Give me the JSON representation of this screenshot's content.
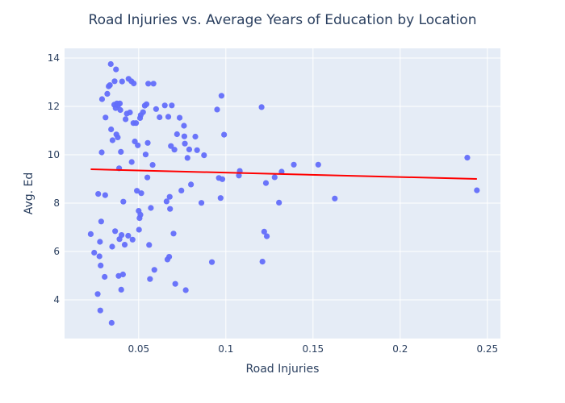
{
  "chart_data": {
    "type": "scatter",
    "title": "Road Injuries vs. Average Years of Education by Location",
    "xlabel": "Road Injuries",
    "ylabel": "Avg. Ed",
    "xlim": [
      0.0075,
      0.2575
    ],
    "ylim": [
      2.4,
      14.4
    ],
    "xticks": [
      0.05,
      0.1,
      0.15,
      0.2,
      0.25
    ],
    "xtick_labels": [
      "0.05",
      "0.1",
      "0.15",
      "0.2",
      "0.25"
    ],
    "yticks": [
      4,
      6,
      8,
      10,
      12,
      14
    ],
    "ytick_labels": [
      "4",
      "6",
      "8",
      "10",
      "12",
      "14"
    ],
    "grid": true,
    "legend": "none",
    "colors": {
      "points": "#636efa",
      "trend": "#ff0000",
      "plot_bg": "#e5ecf6",
      "grid": "#ffffff",
      "text": "#2a3f5f"
    },
    "series": [
      {
        "kind": "points",
        "points": [
          [
            0.0225,
            6.72
          ],
          [
            0.0245,
            5.95
          ],
          [
            0.0265,
            4.24
          ],
          [
            0.0268,
            8.38
          ],
          [
            0.0275,
            5.8
          ],
          [
            0.0278,
            6.4
          ],
          [
            0.028,
            3.56
          ],
          [
            0.0282,
            5.42
          ],
          [
            0.0285,
            7.24
          ],
          [
            0.0288,
            10.1
          ],
          [
            0.029,
            12.3
          ],
          [
            0.0305,
            4.95
          ],
          [
            0.0308,
            8.33
          ],
          [
            0.031,
            11.54
          ],
          [
            0.032,
            12.52
          ],
          [
            0.0328,
            12.83
          ],
          [
            0.0335,
            12.88
          ],
          [
            0.034,
            13.75
          ],
          [
            0.0342,
            11.05
          ],
          [
            0.0345,
            3.05
          ],
          [
            0.0348,
            6.2
          ],
          [
            0.035,
            10.6
          ],
          [
            0.036,
            12.07
          ],
          [
            0.0362,
            13.04
          ],
          [
            0.0365,
            6.84
          ],
          [
            0.0368,
            11.93
          ],
          [
            0.037,
            13.53
          ],
          [
            0.0372,
            10.84
          ],
          [
            0.0375,
            12.12
          ],
          [
            0.038,
            10.72
          ],
          [
            0.0382,
            12.04
          ],
          [
            0.0385,
            4.99
          ],
          [
            0.0388,
            9.44
          ],
          [
            0.039,
            6.51
          ],
          [
            0.0392,
            12.12
          ],
          [
            0.0395,
            11.85
          ],
          [
            0.0398,
            10.12
          ],
          [
            0.04,
            4.42
          ],
          [
            0.0402,
            6.68
          ],
          [
            0.0405,
            13.03
          ],
          [
            0.041,
            5.05
          ],
          [
            0.0412,
            8.06
          ],
          [
            0.042,
            6.28
          ],
          [
            0.0425,
            11.47
          ],
          [
            0.0432,
            11.7
          ],
          [
            0.044,
            6.65
          ],
          [
            0.0442,
            13.14
          ],
          [
            0.045,
            11.75
          ],
          [
            0.0458,
            13.04
          ],
          [
            0.046,
            9.7
          ],
          [
            0.0465,
            6.49
          ],
          [
            0.047,
            11.31
          ],
          [
            0.0472,
            12.95
          ],
          [
            0.0478,
            10.55
          ],
          [
            0.0485,
            11.31
          ],
          [
            0.049,
            8.51
          ],
          [
            0.0495,
            10.39
          ],
          [
            0.05,
            7.68
          ],
          [
            0.0502,
            6.9
          ],
          [
            0.0505,
            7.38
          ],
          [
            0.0508,
            11.52
          ],
          [
            0.051,
            7.52
          ],
          [
            0.0512,
            11.64
          ],
          [
            0.0515,
            8.41
          ],
          [
            0.0525,
            11.76
          ],
          [
            0.0535,
            12.03
          ],
          [
            0.054,
            10.01
          ],
          [
            0.0545,
            12.09
          ],
          [
            0.055,
            9.06
          ],
          [
            0.0552,
            10.49
          ],
          [
            0.0555,
            12.94
          ],
          [
            0.056,
            6.27
          ],
          [
            0.0565,
            4.86
          ],
          [
            0.057,
            7.8
          ],
          [
            0.058,
            9.58
          ],
          [
            0.0585,
            12.94
          ],
          [
            0.059,
            5.24
          ],
          [
            0.06,
            11.89
          ],
          [
            0.062,
            11.55
          ],
          [
            0.065,
            12.04
          ],
          [
            0.066,
            8.07
          ],
          [
            0.0665,
            5.67
          ],
          [
            0.067,
            11.57
          ],
          [
            0.0675,
            5.78
          ],
          [
            0.0678,
            8.26
          ],
          [
            0.068,
            7.76
          ],
          [
            0.0685,
            10.36
          ],
          [
            0.069,
            12.04
          ],
          [
            0.07,
            6.74
          ],
          [
            0.0705,
            10.21
          ],
          [
            0.071,
            4.66
          ],
          [
            0.072,
            10.85
          ],
          [
            0.0735,
            11.53
          ],
          [
            0.0745,
            8.52
          ],
          [
            0.076,
            11.2
          ],
          [
            0.0762,
            10.76
          ],
          [
            0.0765,
            10.46
          ],
          [
            0.077,
            4.4
          ],
          [
            0.078,
            9.87
          ],
          [
            0.079,
            10.22
          ],
          [
            0.08,
            8.77
          ],
          [
            0.0825,
            10.75
          ],
          [
            0.0835,
            10.19
          ],
          [
            0.086,
            8.01
          ],
          [
            0.0875,
            9.98
          ],
          [
            0.092,
            5.56
          ],
          [
            0.095,
            11.87
          ],
          [
            0.096,
            9.04
          ],
          [
            0.097,
            8.21
          ],
          [
            0.0975,
            12.44
          ],
          [
            0.098,
            8.99
          ],
          [
            0.099,
            10.83
          ],
          [
            0.1075,
            9.14
          ],
          [
            0.108,
            9.33
          ],
          [
            0.1205,
            11.97
          ],
          [
            0.121,
            5.58
          ],
          [
            0.122,
            6.82
          ],
          [
            0.123,
            8.83
          ],
          [
            0.1235,
            6.63
          ],
          [
            0.128,
            9.07
          ],
          [
            0.1305,
            8.02
          ],
          [
            0.132,
            9.3
          ],
          [
            0.139,
            9.59
          ],
          [
            0.153,
            9.59
          ],
          [
            0.1625,
            8.19
          ],
          [
            0.2385,
            9.88
          ],
          [
            0.244,
            8.53
          ]
        ]
      },
      {
        "kind": "trend-line",
        "x": [
          0.0225,
          0.244
        ],
        "y": [
          9.4,
          9.0
        ]
      }
    ]
  }
}
